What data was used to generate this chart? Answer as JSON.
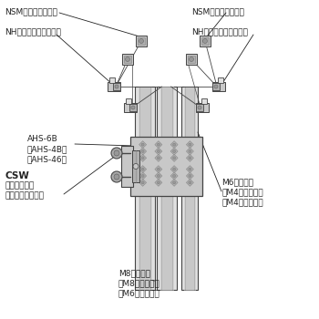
{
  "bg_color": "#ffffff",
  "lc": "#444444",
  "dc": "#222222",
  "gray1": "#e0e0e0",
  "gray2": "#c8c8c8",
  "gray3": "#b0b0b0",
  "gray4": "#989898",
  "labels": {
    "nsm_left": "NSM（四觓ナット）",
    "nsm_right": "NSM（四觓ナット）",
    "nh_left": "NH（ナットホルダー）",
    "nh_right": "NH（ナットホルダー）",
    "ahs": "AHS-6B\n（AHS-4B）\n（AHS-46）",
    "csw_title": "CSW",
    "csw_body": "座金組み込み\n六觓稴付きボルト",
    "m6frame": "M6フレーム\n（M4フレーム）\n（M4フレーム）",
    "m8frame": "M8フレーム\n（M8フレーム）\n（M6フレーム）"
  },
  "fs": 6.5,
  "fsb": 7.5
}
